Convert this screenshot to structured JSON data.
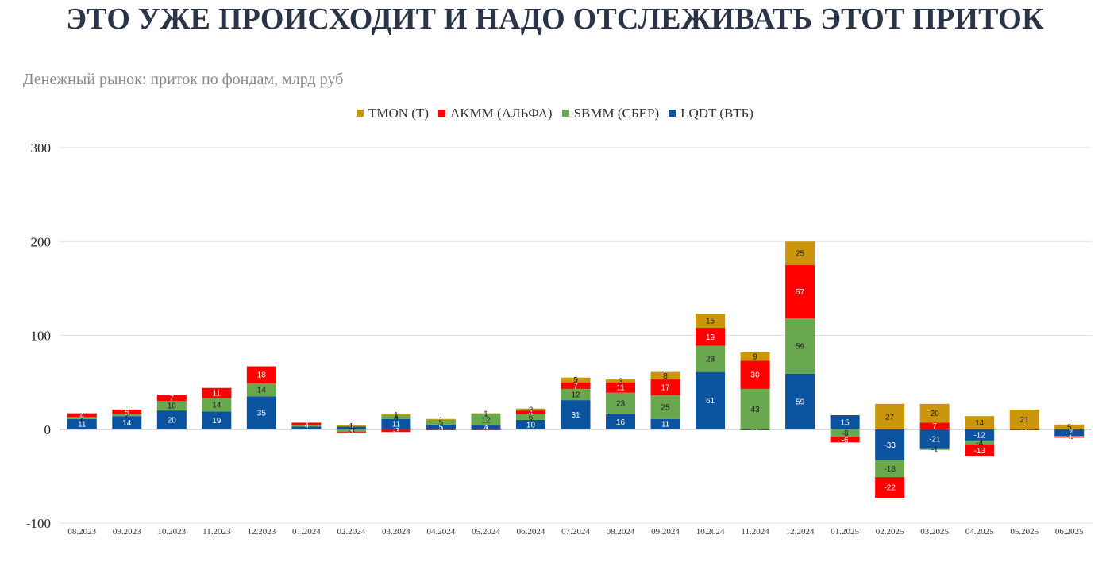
{
  "headline": "ЭТО УЖЕ ПРОИСХОДИТ И НАДО ОТСЛЕЖИВАТЬ ЭТОТ ПРИТОК",
  "chart_data": {
    "type": "bar",
    "stacked": true,
    "title": "Денежный рынок: приток по фондам, млрд руб",
    "ylim": [
      -100,
      300
    ],
    "yticks": [
      -100,
      0,
      100,
      200,
      300
    ],
    "grid": true,
    "legend_position": "top-center",
    "categories": [
      "08.2023",
      "09.2023",
      "10.2023",
      "11.2023",
      "12.2023",
      "01.2024",
      "02.2024",
      "03.2024",
      "04.2024",
      "05.2024",
      "06.2024",
      "07.2024",
      "08.2024",
      "09.2024",
      "10.2024",
      "11.2024",
      "12.2024",
      "01.2025",
      "02.2025",
      "03.2025",
      "04.2025",
      "05.2025",
      "06.2025"
    ],
    "series": [
      {
        "name": "LQDT (ВТБ)",
        "color": "#0b539e",
        "label_color": "#ffffff",
        "values": [
          11,
          14,
          20,
          19,
          35,
          3,
          3,
          11,
          5,
          4,
          10,
          31,
          16,
          11,
          61,
          -1,
          59,
          15,
          -33,
          -21,
          -12,
          0,
          -7
        ]
      },
      {
        "name": "SBMM (СБЕР)",
        "color": "#6aa84f",
        "label_color": "#1a1a1a",
        "values": [
          2,
          2,
          10,
          14,
          14,
          1,
          -3,
          4,
          5,
          12,
          6,
          12,
          23,
          25,
          28,
          43,
          59,
          -8,
          -18,
          -1,
          -4,
          0,
          -1
        ]
      },
      {
        "name": "AKMM (АЛЬФА)",
        "color": "#ff0000",
        "label_color": "#ffffff",
        "values": [
          4,
          5,
          7,
          11,
          18,
          3,
          -1,
          -3,
          -1,
          -1,
          4,
          7,
          11,
          17,
          19,
          30,
          57,
          -6,
          -22,
          7,
          -13,
          -1,
          -1
        ]
      },
      {
        "name": "TMON (Т)",
        "color": "#c9960c",
        "label_color": "#1a1a1a",
        "values": [
          0,
          0,
          0,
          0,
          0,
          0,
          1,
          1,
          1,
          1,
          2,
          5,
          3,
          8,
          15,
          9,
          25,
          0,
          27,
          20,
          14,
          21,
          5
        ]
      }
    ],
    "legend_order": [
      "TMON (Т)",
      "AKMM (АЛЬФА)",
      "SBMM (СБЕР)",
      "LQDT (ВТБ)"
    ]
  }
}
